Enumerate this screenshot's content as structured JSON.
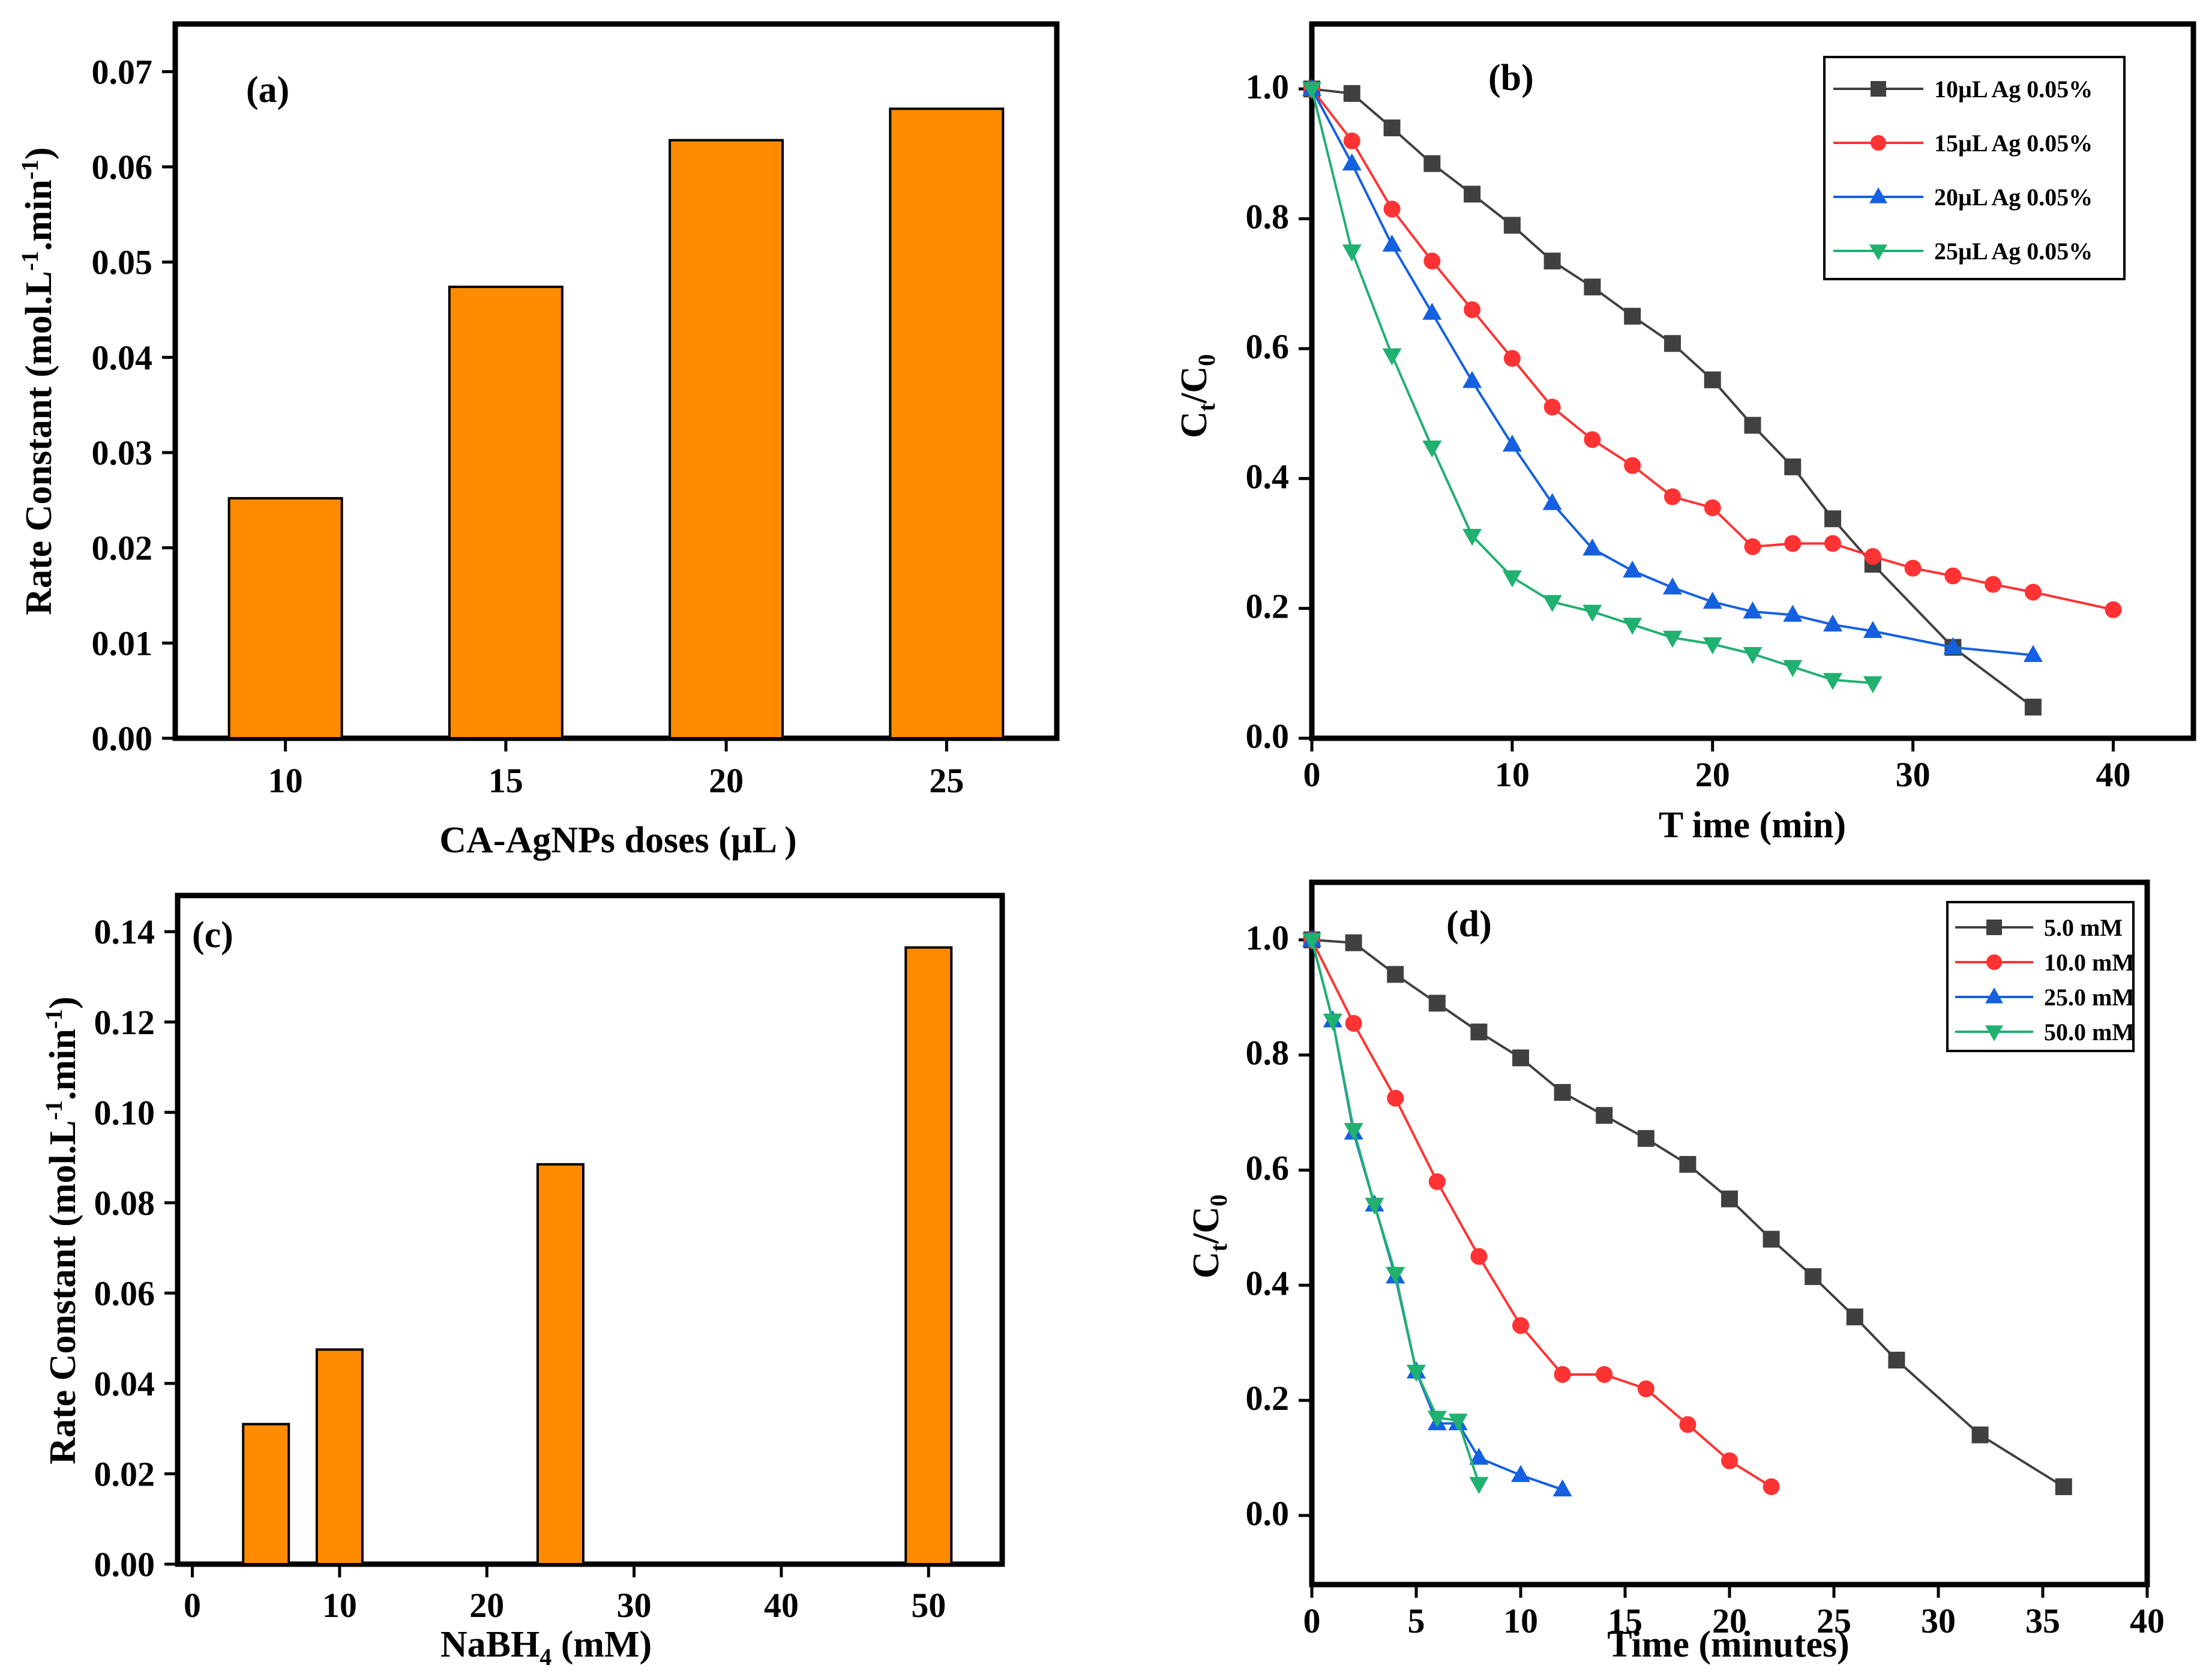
{
  "chart_data": [
    {
      "panel": "(a)",
      "type": "bar",
      "categories": [
        "10",
        "15",
        "20",
        "25"
      ],
      "values": [
        0.0252,
        0.0474,
        0.0628,
        0.0661
      ],
      "bar_color": "#ff8c00",
      "xlabel": "CA-AgNPs doses (µL )",
      "ylabel": "Rate Constant (mol.L",
      "ylabel_sup1": "-1",
      "ylabel_mid": ".min",
      "ylabel_sup2": "-1",
      "ylabel_end": ")",
      "ylim": [
        0,
        0.075
      ],
      "yticks": [
        "0.00",
        "0.01",
        "0.02",
        "0.03",
        "0.04",
        "0.05",
        "0.06",
        "0.07"
      ]
    },
    {
      "panel": "(b)",
      "type": "line",
      "xlabel": "T ime (min)",
      "ylabel_main": "C",
      "ylabel_sub1": "t",
      "ylabel_mid": "/C",
      "ylabel_sub2": "0",
      "xlim": [
        0,
        44
      ],
      "ylim": [
        0,
        1.1
      ],
      "xticks": [
        "0",
        "10",
        "20",
        "30",
        "40"
      ],
      "yticks": [
        "0.0",
        "0.2",
        "0.4",
        "0.6",
        "0.8",
        "1.0"
      ],
      "legend_position": "top-right",
      "series": [
        {
          "name": "10µL Ag 0.05%",
          "color": "#404040",
          "marker": "square",
          "x": [
            0,
            2,
            4,
            6,
            8,
            10,
            12,
            14,
            16,
            18,
            20,
            22,
            24,
            26,
            28,
            32,
            36
          ],
          "y": [
            1.0,
            0.993,
            0.94,
            0.885,
            0.838,
            0.79,
            0.735,
            0.695,
            0.65,
            0.608,
            0.552,
            0.482,
            0.418,
            0.338,
            0.268,
            0.14,
            0.048
          ]
        },
        {
          "name": "15µL Ag 0.05%",
          "color": "#ff3333",
          "marker": "circle",
          "x": [
            0,
            2,
            4,
            6,
            8,
            10,
            12,
            14,
            16,
            18,
            20,
            22,
            24,
            26,
            28,
            30,
            32,
            34,
            36,
            40
          ],
          "y": [
            1.0,
            0.92,
            0.815,
            0.735,
            0.66,
            0.585,
            0.51,
            0.46,
            0.42,
            0.372,
            0.355,
            0.295,
            0.3,
            0.3,
            0.28,
            0.262,
            0.25,
            0.237,
            0.225,
            0.198
          ]
        },
        {
          "name": "20µL Ag 0.05%",
          "color": "#1560e0",
          "marker": "triangle-up",
          "x": [
            0,
            2,
            4,
            6,
            8,
            10,
            12,
            14,
            16,
            18,
            20,
            22,
            24,
            26,
            28,
            32,
            36
          ],
          "y": [
            1.0,
            0.885,
            0.76,
            0.655,
            0.55,
            0.452,
            0.362,
            0.292,
            0.258,
            0.232,
            0.21,
            0.195,
            0.19,
            0.175,
            0.165,
            0.14,
            0.128
          ]
        },
        {
          "name": "25µL Ag 0.05%",
          "color": "#20b070",
          "marker": "triangle-down",
          "x": [
            0,
            2,
            4,
            6,
            8,
            10,
            12,
            14,
            16,
            18,
            20,
            22,
            24,
            26,
            28
          ],
          "y": [
            1.0,
            0.75,
            0.59,
            0.448,
            0.312,
            0.248,
            0.21,
            0.195,
            0.175,
            0.155,
            0.145,
            0.13,
            0.11,
            0.09,
            0.085
          ]
        }
      ]
    },
    {
      "panel": "(c)",
      "type": "bar",
      "x": [
        5,
        10,
        25,
        50
      ],
      "values": [
        0.031,
        0.0475,
        0.0885,
        0.1365
      ],
      "bar_color": "#ff8c00",
      "xlabel_main": "NaBH",
      "xlabel_sub": "4",
      "xlabel_end": " (mM)",
      "ylabel": "Rate Constant (mol.L",
      "ylabel_sup1": "-1",
      "ylabel_mid": ".min",
      "ylabel_sup2": "-1",
      "ylabel_end": ")",
      "xlim": [
        -1,
        55
      ],
      "ylim": [
        0,
        0.148
      ],
      "xticks": [
        "0",
        "10",
        "20",
        "30",
        "40",
        "50"
      ],
      "yticks": [
        "0.00",
        "0.02",
        "0.04",
        "0.06",
        "0.08",
        "0.10",
        "0.12",
        "0.14"
      ]
    },
    {
      "panel": "(d)",
      "type": "line",
      "xlabel": "Time (minutes)",
      "ylabel_main": "C",
      "ylabel_sub1": "t",
      "ylabel_mid": "/C",
      "ylabel_sub2": "0",
      "xlim": [
        0,
        40
      ],
      "ylim": [
        -0.12,
        1.1
      ],
      "xticks": [
        "0",
        "5",
        "10",
        "15",
        "20",
        "25",
        "30",
        "35",
        "40"
      ],
      "yticks": [
        "0.0",
        "0.2",
        "0.4",
        "0.6",
        "0.8",
        "1.0"
      ],
      "legend_position": "top-right",
      "series": [
        {
          "name": "5.0 mM",
          "color": "#404040",
          "marker": "square",
          "x": [
            0,
            2,
            4,
            6,
            8,
            10,
            12,
            14,
            16,
            18,
            20,
            22,
            24,
            26,
            28,
            32,
            36
          ],
          "y": [
            1.0,
            0.995,
            0.94,
            0.89,
            0.84,
            0.795,
            0.735,
            0.695,
            0.655,
            0.61,
            0.55,
            0.48,
            0.415,
            0.345,
            0.27,
            0.14,
            0.05
          ]
        },
        {
          "name": "10.0 mM",
          "color": "#ff3333",
          "marker": "circle",
          "x": [
            0,
            2,
            4,
            6,
            8,
            10,
            12,
            14,
            16,
            18,
            20,
            22
          ],
          "y": [
            1.0,
            0.855,
            0.725,
            0.58,
            0.45,
            0.33,
            0.245,
            0.245,
            0.22,
            0.158,
            0.095,
            0.05
          ]
        },
        {
          "name": "25.0 mM",
          "color": "#1560e0",
          "marker": "triangle-up",
          "x": [
            0,
            1,
            2,
            3,
            4,
            5,
            6,
            7,
            8,
            10,
            12
          ],
          "y": [
            1.0,
            0.86,
            0.665,
            0.54,
            0.415,
            0.25,
            0.16,
            0.16,
            0.1,
            0.07,
            0.045
          ]
        },
        {
          "name": "50.0 mM",
          "color": "#20b070",
          "marker": "triangle-down",
          "x": [
            0,
            1,
            2,
            3,
            4,
            5,
            6,
            7,
            8
          ],
          "y": [
            1.0,
            0.86,
            0.67,
            0.54,
            0.42,
            0.25,
            0.17,
            0.165,
            0.055
          ]
        }
      ]
    }
  ]
}
